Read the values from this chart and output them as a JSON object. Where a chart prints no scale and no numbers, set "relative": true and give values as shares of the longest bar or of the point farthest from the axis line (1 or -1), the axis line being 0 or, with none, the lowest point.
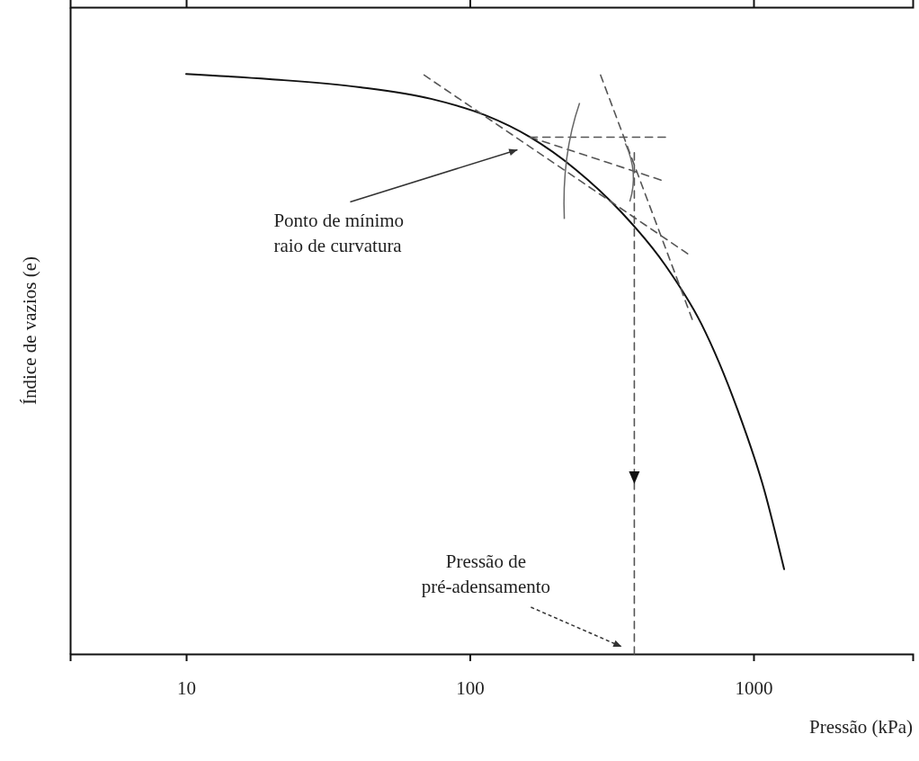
{
  "chart_data": {
    "type": "line",
    "relative": true,
    "log": "x",
    "xlabel": "Pressão (kPa)",
    "ylabel": "Índice de vazios (e)",
    "xlim": [
      3.9,
      3640
    ],
    "xticks": [
      10,
      100,
      1000
    ],
    "grid": false,
    "marker": "none",
    "series": [
      {
        "color": "#111111",
        "line_style": "solid",
        "x": [
          10,
          19.7,
          41,
          73,
          113,
          163,
          235,
          340,
          489,
          655,
          877,
          1092,
          1282
        ],
        "values": [
          1,
          0.991,
          0.977,
          0.957,
          0.929,
          0.891,
          0.836,
          0.763,
          0.67,
          0.569,
          0.422,
          0.282,
          0.146
        ]
      },
      {
        "color": "#555555",
        "line_style": "dashed",
        "x": [
          69,
          586
        ],
        "values": [
          0.998,
          0.69
        ]
      },
      {
        "color": "#555555",
        "line_style": "dashed",
        "x": [
          163,
          489
        ],
        "values": [
          0.891,
          0.891
        ]
      },
      {
        "color": "#555555",
        "line_style": "dashed",
        "x": [
          163,
          472
        ],
        "values": [
          0.891,
          0.817
        ]
      },
      {
        "color": "#555555",
        "line_style": "dashed",
        "x": [
          289,
          608
        ],
        "values": [
          0.998,
          0.577
        ]
      },
      {
        "color": "#555555",
        "line_style": "dashed",
        "x": [
          380,
          380
        ],
        "values": [
          0.864,
          0
        ]
      }
    ],
    "annotations": [
      "Ponto de mínimo raio de curvatura",
      "Pressão de pré-adensamento"
    ]
  }
}
